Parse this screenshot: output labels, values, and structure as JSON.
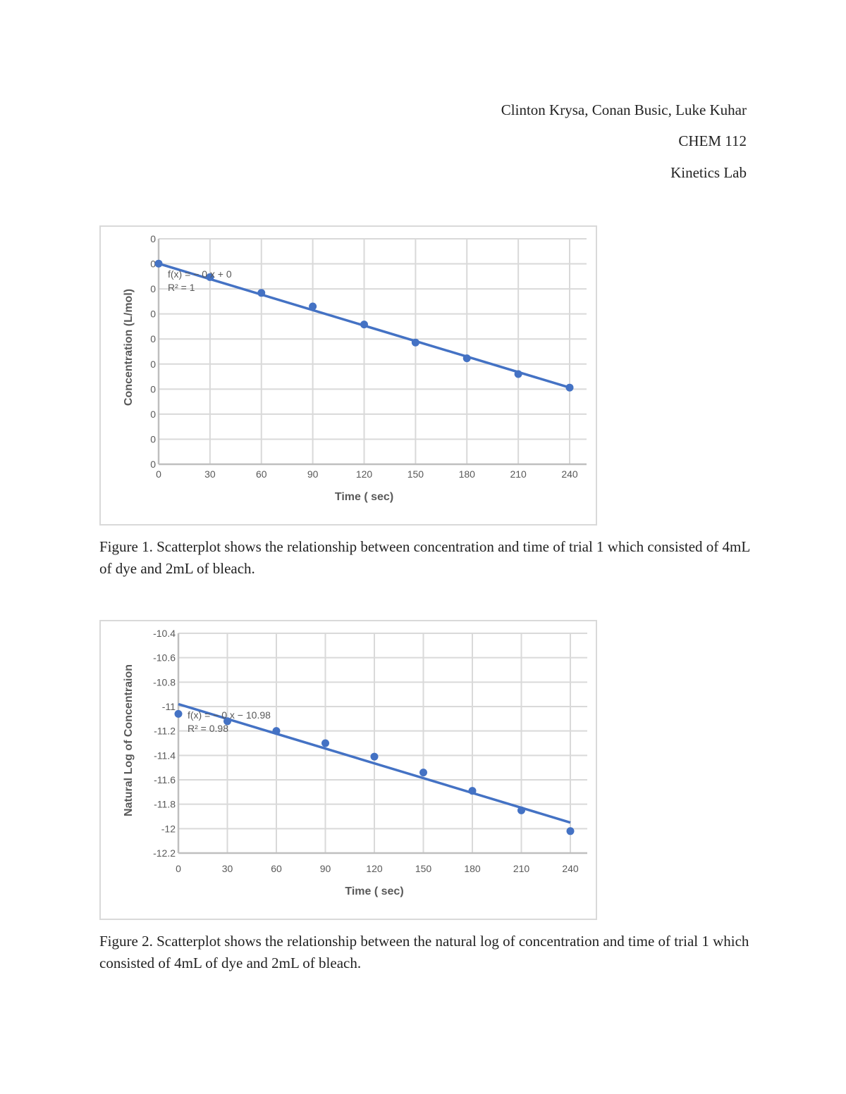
{
  "header": {
    "authors": "Clinton Krysa, Conan Busic, Luke Kuhar",
    "course": "CHEM 112",
    "lab": "Kinetics Lab"
  },
  "figures": [
    {
      "caption": "Figure 1. Scatterplot shows the relationship between concentration and time of trial 1 which consisted of 4mL of dye and 2mL of bleach."
    },
    {
      "caption": "Figure 2. Scatterplot shows the relationship between the natural log of concentration and time of trial 1 which consisted of 4mL of dye and 2mL of bleach."
    }
  ],
  "colors": {
    "series": "#4472c4",
    "grid": "#d9d9d9",
    "axis_text": "#595959",
    "frame": "#d9d9d9"
  },
  "chart_data": [
    {
      "type": "scatter",
      "title": "",
      "xlabel": "Time ( sec)",
      "ylabel": "Concentration (L/mol)",
      "x_ticks": [
        "0",
        "30",
        "60",
        "90",
        "120",
        "150",
        "180",
        "210",
        "240"
      ],
      "y_ticks": [
        "0",
        "0",
        "0",
        "0",
        "0",
        "0",
        "0",
        "0",
        "0",
        "0"
      ],
      "grid": true,
      "legend": "none",
      "x": [
        0,
        30,
        60,
        90,
        120,
        150,
        180,
        210,
        240
      ],
      "y_relative_position": [
        0.89,
        0.83,
        0.76,
        0.7,
        0.62,
        0.54,
        0.47,
        0.4,
        0.34
      ],
      "trendline": {
        "type": "linear",
        "equation": "f(x) = − 0 x + 0",
        "r_squared": "R² = 1"
      },
      "xlim": [
        0,
        240
      ]
    },
    {
      "type": "scatter",
      "title": "",
      "xlabel": "Time ( sec)",
      "ylabel": "Natural Log of Concentraion",
      "x_ticks": [
        "0",
        "30",
        "60",
        "90",
        "120",
        "150",
        "180",
        "210",
        "240"
      ],
      "y_ticks": [
        "-10.4",
        "-10.6",
        "-10.8",
        "-11",
        "-11.2",
        "-11.4",
        "-11.6",
        "-11.8",
        "-12",
        "-12.2"
      ],
      "grid": true,
      "legend": "none",
      "x": [
        0,
        30,
        60,
        90,
        120,
        150,
        180,
        210,
        240
      ],
      "y": [
        -11.06,
        -11.12,
        -11.2,
        -11.3,
        -11.41,
        -11.54,
        -11.69,
        -11.85,
        -12.02
      ],
      "trendline": {
        "type": "linear",
        "equation": "f(x) = − 0 x − 10.98",
        "r_squared": "R² = 0.98",
        "y_start": -10.98,
        "y_end": -11.95
      },
      "xlim": [
        0,
        240
      ],
      "ylim": [
        -12.2,
        -10.4
      ]
    }
  ]
}
